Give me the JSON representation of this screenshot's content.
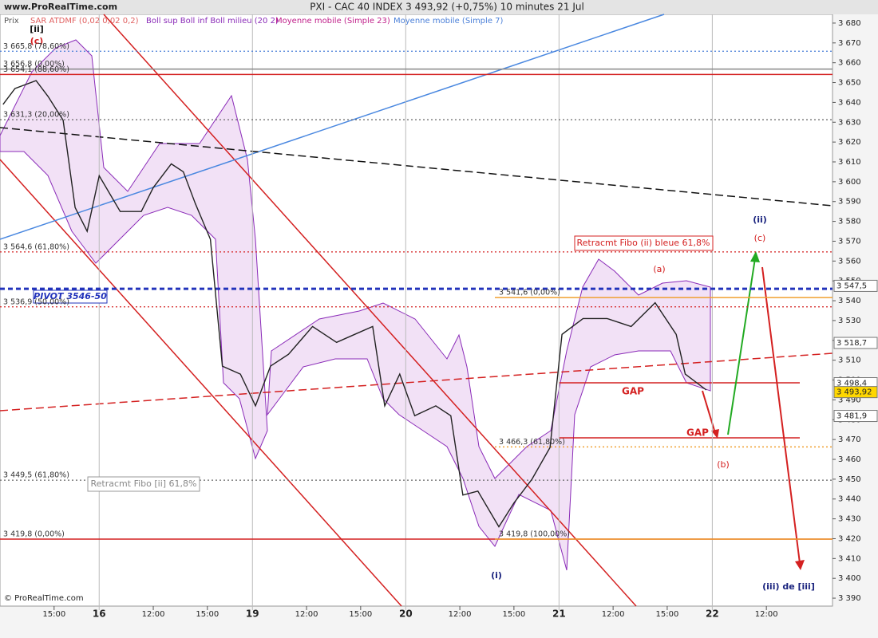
{
  "chart_data": {
    "type": "line",
    "site": "www.ProRealTime.com",
    "title": "PXI - CAC 40 INDEX   3 493,92 (+0,75%)   10 minutes  21 Jul",
    "copyright": "© ProRealTime.com",
    "indicators": [
      {
        "name": "Prix",
        "color": "#555555"
      },
      {
        "name": "SAR ATDMF (0,02 0,02 0,2)",
        "color": "#e06060"
      },
      {
        "name": "Boll sup Boll inf Boll milieu (20 2)",
        "color": "#8a2bb8"
      },
      {
        "name": "Moyenne mobile (Simple 23)",
        "color": "#c0208a"
      },
      {
        "name": "Moyenne mobile (Simple 7)",
        "color": "#4a7fd8"
      }
    ],
    "x": [
      -32,
      -28,
      -21,
      -17,
      -12,
      -8,
      -4,
      0,
      7,
      14,
      18,
      24,
      28,
      32,
      37,
      41,
      47,
      52,
      57,
      63,
      71,
      79,
      85,
      91,
      95,
      100,
      105,
      112,
      117,
      121,
      126,
      133,
      138,
      144,
      150,
      154,
      161,
      169,
      177,
      185,
      192,
      195,
      202
    ],
    "values": [
      3639,
      3647,
      3651,
      3643,
      3631,
      3587,
      3575,
      3603,
      3585,
      3585,
      3597,
      3609,
      3605,
      3589,
      3571,
      3507,
      3503,
      3487,
      3507,
      3513,
      3527,
      3519,
      3523,
      3527,
      3487,
      3503,
      3482,
      3487,
      3482,
      3442,
      3444,
      3426,
      3438,
      3450,
      3466,
      3523,
      3531,
      3531,
      3527,
      3539,
      3523,
      3503,
      3495
    ],
    "color": "#222222",
    "xlim": [
      -33,
      244
    ],
    "ylim": [
      3386,
      3684.4
    ],
    "xticks": [
      {
        "value": -15,
        "label": "15:00"
      },
      {
        "value": 0,
        "label": "16"
      },
      {
        "value": 18,
        "label": "12:00"
      },
      {
        "value": 36,
        "label": "15:00"
      },
      {
        "value": 51,
        "label": "19"
      },
      {
        "value": 69,
        "label": "12:00"
      },
      {
        "value": 87,
        "label": "15:00"
      },
      {
        "value": 102,
        "label": "20"
      },
      {
        "value": 120,
        "label": "12:00"
      },
      {
        "value": 138,
        "label": "15:00"
      },
      {
        "value": 153,
        "label": "21"
      },
      {
        "value": 171,
        "label": "12:00"
      },
      {
        "value": 189,
        "label": "15:00"
      },
      {
        "value": 204,
        "label": "22"
      },
      {
        "value": 222,
        "label": "12:00"
      }
    ],
    "yticks": [
      {
        "value": 3390,
        "label": "3 390"
      },
      {
        "value": 3400,
        "label": "3 400"
      },
      {
        "value": 3410,
        "label": "3 410"
      },
      {
        "value": 3420,
        "label": "3 420"
      },
      {
        "value": 3430,
        "label": "3 430"
      },
      {
        "value": 3440,
        "label": "3 440"
      },
      {
        "value": 3450,
        "label": "3 450"
      },
      {
        "value": 3460,
        "label": "3 460"
      },
      {
        "value": 3470,
        "label": "3 470"
      },
      {
        "value": 3480,
        "label": "3 480"
      },
      {
        "value": 3490,
        "label": "3 490"
      },
      {
        "value": 3500,
        "label": "3 500"
      },
      {
        "value": 3510,
        "label": "3 510"
      },
      {
        "value": 3520,
        "label": "3 520"
      },
      {
        "value": 3530,
        "label": "3 530"
      },
      {
        "value": 3540,
        "label": "3 540"
      },
      {
        "value": 3550,
        "label": "3 550"
      },
      {
        "value": 3560,
        "label": "3 560"
      },
      {
        "value": 3570,
        "label": "3 570"
      },
      {
        "value": 3580,
        "label": "3 580"
      },
      {
        "value": 3590,
        "label": "3 590"
      },
      {
        "value": 3600,
        "label": "3 600"
      },
      {
        "value": 3610,
        "label": "3 610"
      },
      {
        "value": 3620,
        "label": "3 620"
      },
      {
        "value": 3630,
        "label": "3 630"
      },
      {
        "value": 3640,
        "label": "3 640"
      },
      {
        "value": 3650,
        "label": "3 650"
      },
      {
        "value": 3660,
        "label": "3 660"
      },
      {
        "value": 3670,
        "label": "3 670"
      },
      {
        "value": 3680,
        "label": "3 680"
      }
    ],
    "levels": [
      {
        "value": 3665.8,
        "label": "3 665,8 (78,60%)",
        "color": "#4a7fd8",
        "style": "dotted"
      },
      {
        "value": 3656.8,
        "label": "3 656,8 (0,00%)",
        "color": "#888888",
        "style": "solid"
      },
      {
        "value": 3654.1,
        "label": "3 654,1 (88,60%)",
        "color": "#d42020",
        "style": "solid"
      },
      {
        "value": 3631.3,
        "label": "3 631,3 (20,00%)",
        "color": "#555555",
        "style": "dotted"
      },
      {
        "value": 3564.6,
        "label": "3 564,6 (61,80%)",
        "color": "#d42020",
        "style": "dotted"
      },
      {
        "value": 3536.9,
        "label": "3 536,9 (50,00%)",
        "color": "#d42020",
        "style": "dotted"
      },
      {
        "value": 3546,
        "color": "#2233bb",
        "style": "dashed"
      },
      {
        "value": 3449.5,
        "label": "3 449,5 (61,80%)",
        "color": "#666666",
        "style": "dotted"
      },
      {
        "value": 3419.8,
        "label": "3 419,8 (0,00%)",
        "color": "#d42020",
        "style": "solid"
      }
    ],
    "right_levels": [
      {
        "value": 3541.6,
        "label": "3 541,6 (0,00%)",
        "color": "#f0a030",
        "style": "solid"
      },
      {
        "value": 3466.3,
        "label": "3 466,3 (61,80%)",
        "color": "#f0a030",
        "style": "dotted"
      },
      {
        "value": 3419.8,
        "label": "3 419,8 (100,00%)",
        "color": "#f0a030",
        "style": "solid"
      }
    ],
    "price_tags": [
      {
        "value": 3547.5,
        "label": "3 547,5",
        "color": "#ffffff"
      },
      {
        "value": 3518.7,
        "label": "3 518,7",
        "color": "#ffffff"
      },
      {
        "value": 3498.4,
        "label": "3 498,4",
        "color": "#ffffff"
      },
      {
        "value": 3481.9,
        "label": "3 481,9",
        "color": "#ffffff"
      },
      {
        "value": 3493.92,
        "label": "3 493,92",
        "color": "#ffd700"
      }
    ],
    "annotations": [
      "Retracmt Fibo (ii) bleue 61,8%",
      "Retracmt Fibo [ii] 61,8%",
      "PIVOT 3546-50",
      "GAP",
      "GAP",
      "(iii) de [iii]",
      "(ii)",
      "(c)",
      "(a)",
      "(b)",
      "(i)",
      "[ii]",
      "(c)"
    ]
  }
}
